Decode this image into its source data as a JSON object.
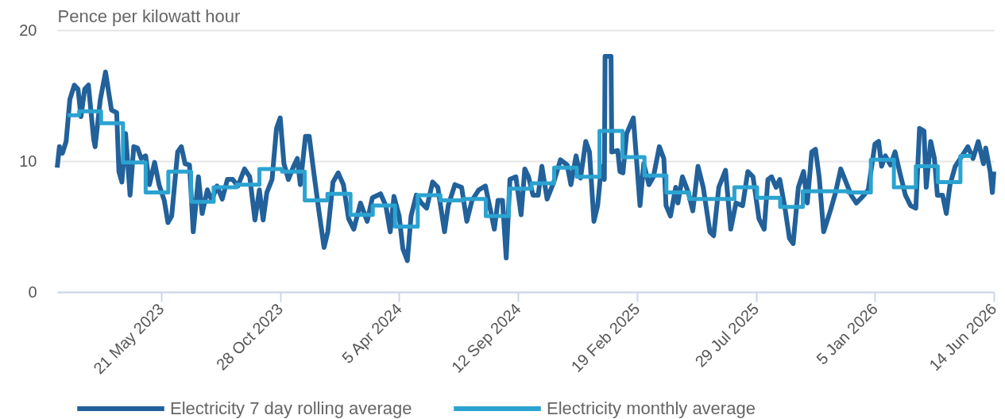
{
  "chart_data": {
    "type": "line",
    "ylabel": "Pence per kilowatt hour",
    "xlim": [
      "2023-01-01",
      "2026-06-14"
    ],
    "ylim": [
      0,
      20
    ],
    "yticks": [
      0,
      10,
      20
    ],
    "xticks": [
      {
        "value": "2023-05-21",
        "label": "21 May 2023"
      },
      {
        "value": "2023-10-28",
        "label": "28 Oct 2023"
      },
      {
        "value": "2024-04-05",
        "label": "5 Apr 2024"
      },
      {
        "value": "2024-09-12",
        "label": "12 Sep 2024"
      },
      {
        "value": "2025-02-19",
        "label": "19 Feb 2025"
      },
      {
        "value": "2025-07-29",
        "label": "29 Jul 2025"
      },
      {
        "value": "2026-01-05",
        "label": "5 Jan 2026"
      },
      {
        "value": "2026-06-14",
        "label": "14 Jun 2026"
      }
    ],
    "grid": "y",
    "legend": "bottom",
    "series": [
      {
        "name": "Electricity 7 day rolling average",
        "color": "#22619a",
        "type": "line",
        "x": [
          "2023-01-01",
          "2023-01-04",
          "2023-01-08",
          "2023-01-13",
          "2023-01-18",
          "2023-01-24",
          "2023-01-29",
          "2023-02-02",
          "2023-02-07",
          "2023-02-12",
          "2023-02-19",
          "2023-02-21",
          "2023-02-28",
          "2023-03-07",
          "2023-03-15",
          "2023-03-22",
          "2023-03-25",
          "2023-03-29",
          "2023-04-03",
          "2023-04-09",
          "2023-04-14",
          "2023-04-19",
          "2023-04-24",
          "2023-04-30",
          "2023-05-05",
          "2023-05-12",
          "2023-05-18",
          "2023-05-25",
          "2023-05-30",
          "2023-06-04",
          "2023-06-12",
          "2023-06-17",
          "2023-06-22",
          "2023-06-28",
          "2023-07-03",
          "2023-07-10",
          "2023-07-15",
          "2023-07-22",
          "2023-07-28",
          "2023-08-04",
          "2023-08-11",
          "2023-08-18",
          "2023-08-25",
          "2023-09-01",
          "2023-09-10",
          "2023-09-17",
          "2023-09-24",
          "2023-09-30",
          "2023-10-05",
          "2023-10-10",
          "2023-10-17",
          "2023-10-23",
          "2023-10-28",
          "2023-11-02",
          "2023-11-08",
          "2023-11-15",
          "2023-11-20",
          "2023-11-24",
          "2023-12-01",
          "2023-12-06",
          "2023-12-12",
          "2023-12-19",
          "2023-12-26",
          "2023-12-31",
          "2024-01-07",
          "2024-01-14",
          "2024-01-21",
          "2024-01-28",
          "2024-02-04",
          "2024-02-13",
          "2024-02-22",
          "2024-02-29",
          "2024-03-11",
          "2024-03-18",
          "2024-03-24",
          "2024-03-29",
          "2024-04-05",
          "2024-04-10",
          "2024-04-16",
          "2024-04-21",
          "2024-04-28",
          "2024-05-05",
          "2024-05-12",
          "2024-05-20",
          "2024-05-27",
          "2024-06-05",
          "2024-06-10",
          "2024-06-19",
          "2024-06-28",
          "2024-07-05",
          "2024-07-12",
          "2024-07-21",
          "2024-07-30",
          "2024-08-06",
          "2024-08-11",
          "2024-08-16",
          "2024-08-22",
          "2024-08-27",
          "2024-09-01",
          "2024-09-09",
          "2024-09-16",
          "2024-09-21",
          "2024-09-26",
          "2024-10-02",
          "2024-10-09",
          "2024-10-14",
          "2024-10-21",
          "2024-10-30",
          "2024-11-08",
          "2024-11-17",
          "2024-11-22",
          "2024-11-29",
          "2024-12-05",
          "2024-12-12",
          "2024-12-17",
          "2024-12-23",
          "2024-12-28",
          "2025-01-02",
          "2025-01-06",
          "2025-01-07",
          "2025-01-15",
          "2025-01-16",
          "2025-01-24",
          "2025-01-27",
          "2025-01-31",
          "2025-02-05",
          "2025-02-14",
          "2025-02-23",
          "2025-02-28",
          "2025-03-07",
          "2025-03-13",
          "2025-03-21",
          "2025-03-27",
          "2025-03-30",
          "2025-04-05",
          "2025-04-12",
          "2025-04-15",
          "2025-04-21",
          "2025-04-29",
          "2025-05-05",
          "2025-05-12",
          "2025-05-19",
          "2025-05-28",
          "2025-06-02",
          "2025-06-09",
          "2025-06-18",
          "2025-06-25",
          "2025-07-02",
          "2025-07-11",
          "2025-07-18",
          "2025-07-25",
          "2025-08-02",
          "2025-08-09",
          "2025-08-14",
          "2025-08-19",
          "2025-08-25",
          "2025-08-30",
          "2025-09-06",
          "2025-09-12",
          "2025-09-17",
          "2025-09-24",
          "2025-10-01",
          "2025-10-06",
          "2025-10-12",
          "2025-10-17",
          "2025-10-22",
          "2025-10-28",
          "2025-11-06",
          "2025-11-13",
          "2025-11-20",
          "2025-11-27",
          "2025-12-04",
          "2025-12-11",
          "2025-12-18",
          "2025-12-27",
          "2026-01-05",
          "2026-01-10",
          "2026-01-14",
          "2026-01-19",
          "2026-01-26",
          "2026-02-01",
          "2026-02-08",
          "2026-02-15",
          "2026-02-22",
          "2026-03-01",
          "2026-03-06",
          "2026-03-12",
          "2026-03-15",
          "2026-03-21",
          "2026-03-26",
          "2026-03-30",
          "2026-04-06",
          "2026-04-11",
          "2026-04-16",
          "2026-04-23",
          "2026-05-01",
          "2026-05-10",
          "2026-05-17",
          "2026-05-24",
          "2026-05-31",
          "2026-06-03",
          "2026-06-09",
          "2026-06-12",
          "2026-06-14"
        ],
        "values": [
          9.5,
          11.1,
          10.6,
          11.5,
          14.7,
          15.8,
          15.5,
          13.4,
          15.5,
          15.8,
          11.7,
          11.1,
          14.7,
          16.8,
          13.9,
          13.7,
          9.2,
          8.4,
          12.1,
          7.4,
          11.1,
          11.0,
          10.2,
          10.4,
          8.2,
          9.9,
          8.2,
          7.0,
          5.3,
          5.8,
          10.7,
          11.1,
          9.8,
          9.7,
          4.6,
          8.8,
          6.0,
          7.8,
          7.0,
          8.1,
          7.1,
          8.6,
          8.6,
          8.1,
          9.4,
          8.8,
          5.5,
          7.8,
          5.5,
          7.6,
          8.6,
          12.5,
          13.3,
          9.8,
          8.6,
          9.6,
          10.2,
          8.2,
          11.9,
          11.9,
          9.2,
          6.2,
          3.4,
          4.6,
          8.4,
          9.1,
          8.2,
          5.6,
          4.8,
          6.8,
          5.4,
          7.2,
          7.5,
          6.6,
          4.6,
          7.3,
          5.8,
          3.3,
          2.4,
          5.8,
          7.4,
          6.8,
          6.4,
          8.4,
          8.0,
          4.6,
          6.6,
          8.2,
          8.0,
          5.4,
          7.0,
          7.8,
          8.1,
          6.2,
          4.8,
          7.0,
          7.0,
          2.6,
          8.6,
          8.8,
          5.9,
          9.4,
          8.8,
          7.4,
          7.4,
          9.6,
          7.1,
          8.4,
          10.1,
          9.7,
          8.2,
          10.4,
          8.7,
          11.5,
          10.7,
          5.4,
          6.6,
          9.6,
          8.6,
          18.0,
          18.0,
          10.7,
          10.8,
          9.2,
          9.1,
          12.1,
          13.3,
          6.6,
          9.8,
          8.2,
          8.8,
          11.1,
          10.2,
          6.6,
          5.8,
          8.0,
          6.8,
          8.8,
          7.6,
          6.2,
          9.6,
          8.0,
          4.6,
          4.3,
          8.0,
          9.3,
          4.8,
          6.8,
          6.6,
          9.2,
          8.8,
          5.6,
          4.8,
          8.6,
          8.8,
          8.0,
          8.6,
          6.4,
          4.1,
          3.7,
          8.0,
          9.2,
          6.8,
          10.7,
          10.9,
          8.8,
          4.6,
          6.2,
          7.6,
          9.4,
          8.4,
          7.4,
          6.8,
          7.2,
          7.8,
          11.3,
          11.5,
          9.6,
          10.4,
          9.7,
          10.7,
          9.0,
          7.4,
          6.6,
          6.4,
          12.5,
          12.3,
          8.0,
          11.5,
          10.2,
          7.4,
          7.4,
          6.0,
          8.2,
          9.6,
          10.3,
          11.1,
          10.2,
          11.5,
          9.8,
          11.0,
          9.2,
          7.6,
          9.2
        ]
      },
      {
        "name": "Electricity monthly average",
        "color": "#2ba3d1",
        "type": "step",
        "x": [
          "2023-01-15",
          "2023-02-15",
          "2023-03-15",
          "2023-04-15",
          "2023-05-15",
          "2023-06-15",
          "2023-07-15",
          "2023-08-15",
          "2023-09-15",
          "2023-10-15",
          "2023-11-15",
          "2023-12-15",
          "2024-01-15",
          "2024-02-15",
          "2024-03-15",
          "2024-04-15",
          "2024-05-15",
          "2024-06-15",
          "2024-07-15",
          "2024-08-15",
          "2024-09-15",
          "2024-10-15",
          "2024-11-15",
          "2024-12-15",
          "2025-01-15",
          "2025-02-15",
          "2025-03-15",
          "2025-04-15",
          "2025-05-15",
          "2025-06-15",
          "2025-07-15",
          "2025-08-15",
          "2025-09-15",
          "2025-10-15",
          "2025-11-15",
          "2025-12-15",
          "2026-01-15",
          "2026-02-15",
          "2026-03-15",
          "2026-04-15",
          "2026-05-15"
        ],
        "values": [
          13.5,
          13.8,
          12.9,
          9.9,
          7.6,
          9.2,
          6.9,
          8.0,
          8.2,
          9.4,
          9.2,
          7.0,
          7.5,
          5.9,
          6.6,
          5.0,
          7.4,
          7.0,
          7.1,
          5.8,
          7.9,
          8.3,
          9.5,
          8.8,
          12.3,
          10.3,
          8.9,
          7.6,
          7.1,
          7.1,
          8.0,
          7.2,
          6.5,
          7.7,
          7.7,
          7.6,
          10.1,
          8.0,
          9.6,
          8.4,
          10.4
        ]
      }
    ]
  }
}
